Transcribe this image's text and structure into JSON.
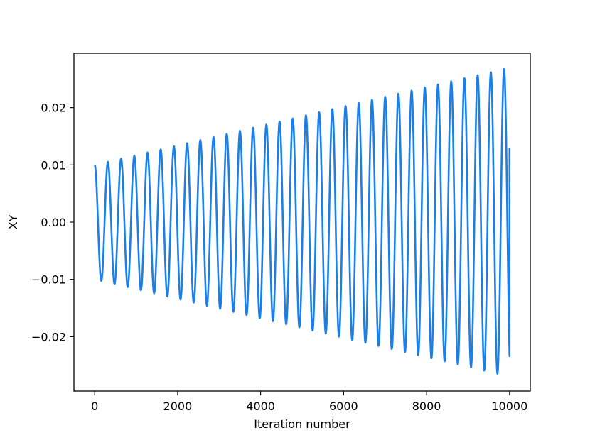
{
  "chart_data": {
    "type": "line",
    "title": "",
    "xlabel": "Iteration number",
    "ylabel": "XY",
    "xlim": [
      -500,
      10500
    ],
    "ylim": [
      -0.0295,
      0.0295
    ],
    "xticks": [
      0,
      2000,
      4000,
      6000,
      8000,
      10000
    ],
    "xtick_labels": [
      "0",
      "2000",
      "4000",
      "6000",
      "8000",
      "10000"
    ],
    "yticks": [
      -0.02,
      -0.01,
      0.0,
      0.01,
      0.02
    ],
    "ytick_labels": [
      "−0.02",
      "−0.01",
      "0.00",
      "0.01",
      "0.02"
    ],
    "grid": false,
    "legend": "none",
    "series": [
      {
        "color": "#1a7fe8",
        "samples_per_period": 40,
        "x": [
          0,
          10000
        ],
        "period": 318.3,
        "amplitude_start": 0.01,
        "amplitude_end": 0.027,
        "phase_start": "cosine",
        "x_end": 10000,
        "y_end": 0.013
      }
    ]
  },
  "colors": {
    "line": "#1a7fe8",
    "axis": "#000000",
    "background": "#ffffff"
  }
}
